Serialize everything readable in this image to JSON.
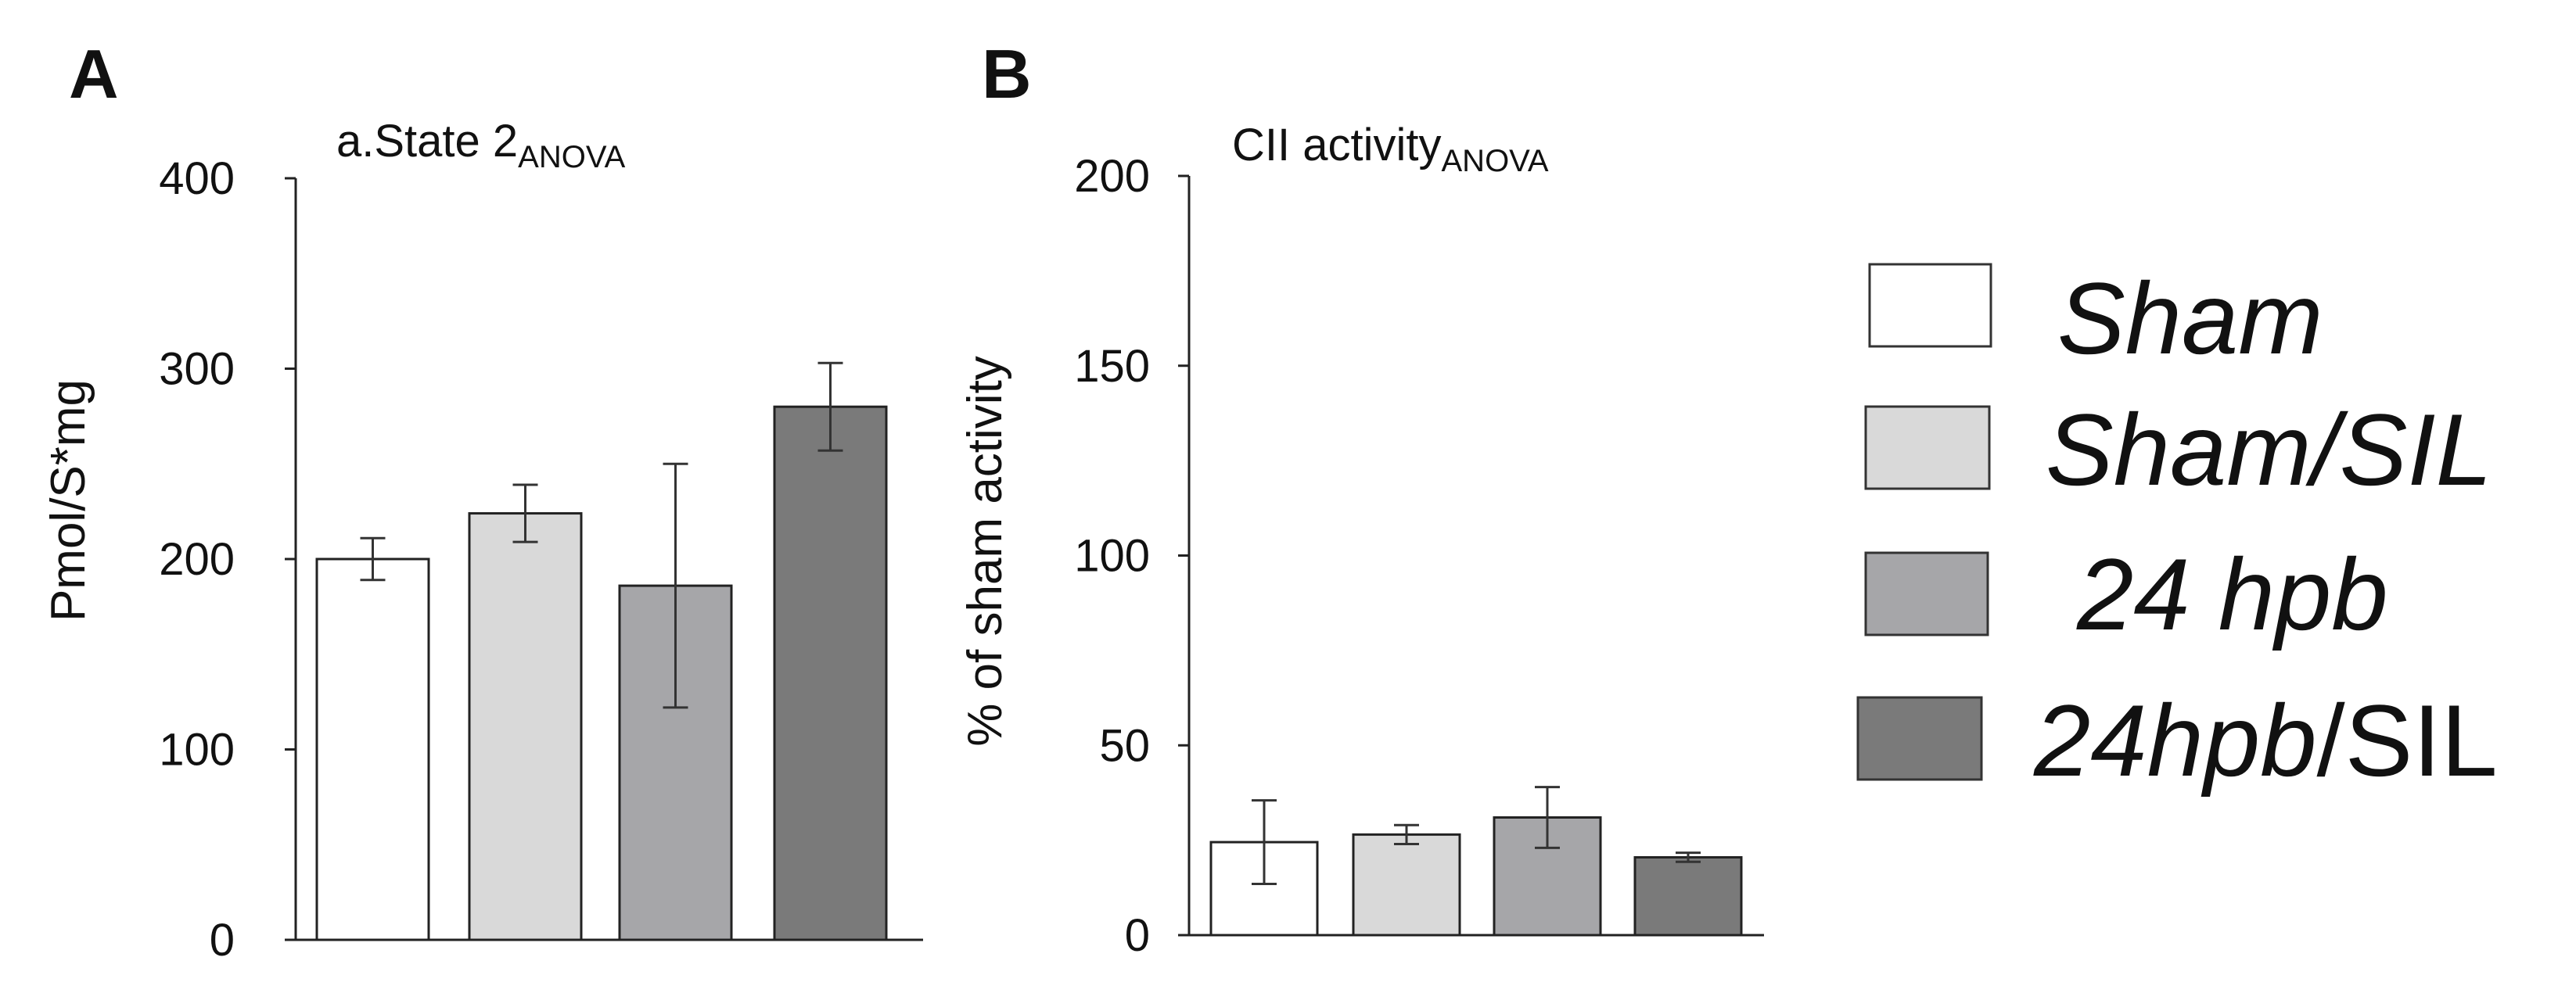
{
  "chart_data": [
    {
      "type": "bar",
      "panel": "A",
      "title": "a.State 2",
      "title_subscript": "ANOVA",
      "ylabel": "Pmol/S*mg",
      "ylim": [
        0,
        400
      ],
      "yticks": [
        0,
        100,
        200,
        300,
        400
      ],
      "categories": [
        "Sham",
        "Sham/SIL",
        "24 hpb",
        "24hpb/SIL"
      ],
      "values": [
        200,
        224,
        186,
        280
      ],
      "errors": [
        11,
        15,
        64,
        23
      ]
    },
    {
      "type": "bar",
      "panel": "B",
      "title": "CII activity",
      "title_subscript": "ANOVA",
      "ylabel": "% of sham activity",
      "ylim": [
        0,
        200
      ],
      "yticks": [
        0,
        50,
        100,
        150,
        200
      ],
      "categories": [
        "Sham",
        "Sham/SIL",
        "24 hpb",
        "24hpb/SIL"
      ],
      "values": [
        24.5,
        26.5,
        31,
        20.5
      ],
      "errors": [
        11,
        2.5,
        8,
        1.2
      ]
    }
  ],
  "legend": [
    {
      "prefix": "",
      "italic": "Sham",
      "suffix": "",
      "color": "#ffffff"
    },
    {
      "prefix": "",
      "italic": "Sham/SIL",
      "suffix": "",
      "color": "#d9d9d9"
    },
    {
      "prefix": "",
      "italic": "24 hpb",
      "suffix": "",
      "color": "#a6a6a9"
    },
    {
      "prefix": "",
      "italic": "24hpb",
      "suffix": "/SIL",
      "color": "#7a7a7a"
    }
  ],
  "bar_colors": [
    "#ffffff",
    "#d9d9d9",
    "#a6a6a9",
    "#7a7a7a"
  ]
}
